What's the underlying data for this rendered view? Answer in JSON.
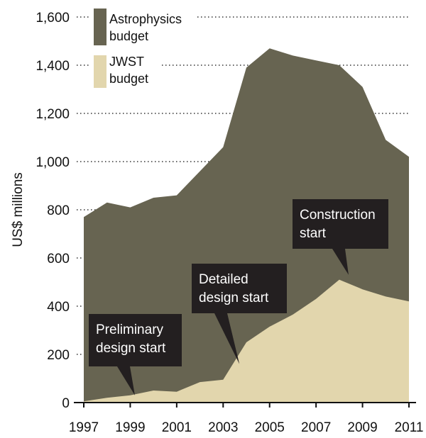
{
  "chart_data": {
    "type": "area",
    "ylabel": "US$ millions",
    "ylim": [
      0,
      1600
    ],
    "xlim": [
      1997,
      2011
    ],
    "y_ticks": [
      {
        "value": 0,
        "label": "0"
      },
      {
        "value": 200,
        "label": "200"
      },
      {
        "value": 400,
        "label": "400"
      },
      {
        "value": 600,
        "label": "600"
      },
      {
        "value": 800,
        "label": "800"
      },
      {
        "value": 1000,
        "label": "1,000"
      },
      {
        "value": 1200,
        "label": "1,200"
      },
      {
        "value": 1400,
        "label": "1,400"
      },
      {
        "value": 1600,
        "label": "1,600"
      }
    ],
    "x_ticks": [
      "1997",
      "1999",
      "2001",
      "2003",
      "2005",
      "2007",
      "2009",
      "2011"
    ],
    "grid": "dotted horizontal",
    "legend_position": "top-left",
    "series": [
      {
        "name": "Astrophysics budget",
        "color": "#676451",
        "x": [
          1997,
          1998,
          1999,
          2000,
          2001,
          2002,
          2003,
          2004,
          2005,
          2006,
          2007,
          2008,
          2009,
          2010,
          2011
        ],
        "values": [
          770,
          830,
          810,
          850,
          860,
          960,
          1060,
          1390,
          1470,
          1440,
          1420,
          1400,
          1310,
          1090,
          1020
        ]
      },
      {
        "name": "JWST budget",
        "color": "#e2d6ad",
        "x": [
          1997,
          1998,
          1999,
          2000,
          2001,
          2002,
          2003,
          2004,
          2005,
          2006,
          2007,
          2008,
          2009,
          2010,
          2011
        ],
        "values": [
          5,
          20,
          30,
          50,
          45,
          85,
          95,
          250,
          315,
          365,
          430,
          510,
          470,
          440,
          420
        ]
      }
    ],
    "legend": [
      {
        "line1": "Astrophysics",
        "line2": "budget",
        "color": "#676451"
      },
      {
        "line1": "JWST",
        "line2": "budget",
        "color": "#e2d6ad"
      }
    ],
    "annotations": [
      {
        "lines": [
          "Preliminary",
          "design start"
        ],
        "point_x": 1999.2,
        "point_y": 30
      },
      {
        "lines": [
          "Detailed",
          "design start"
        ],
        "point_x": 2003.7,
        "point_y": 160
      },
      {
        "lines": [
          "Construction",
          "start"
        ],
        "point_x": 2008.4,
        "point_y": 530
      }
    ]
  }
}
